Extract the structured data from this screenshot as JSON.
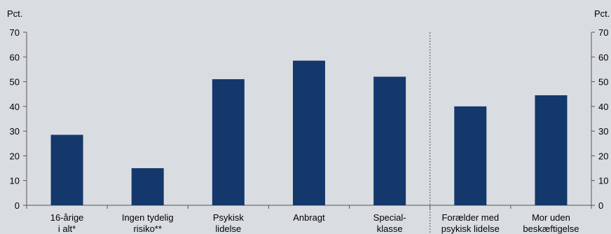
{
  "chart_data": {
    "type": "bar",
    "y_unit_left": "Pct.",
    "y_unit_right": "Pct.",
    "ylim": [
      0,
      70
    ],
    "yticks": [
      0,
      10,
      20,
      30,
      40,
      50,
      60,
      70
    ],
    "grid": false,
    "bar_color": "#14386b",
    "background": "#d9dde1",
    "categories": [
      [
        "16-årige",
        "i alt*"
      ],
      [
        "Ingen tydelig",
        "risiko**"
      ],
      [
        "Psykisk",
        "lidelse"
      ],
      [
        "Anbragt",
        ""
      ],
      [
        "Special-",
        "klasse"
      ],
      [
        "Forælder med",
        "psykisk lidelse"
      ],
      [
        "Mor uden",
        "beskæftigelse"
      ]
    ],
    "values": [
      28.5,
      15.0,
      51.0,
      58.5,
      52.0,
      40.0,
      44.5
    ],
    "separator_after_index": 4
  }
}
